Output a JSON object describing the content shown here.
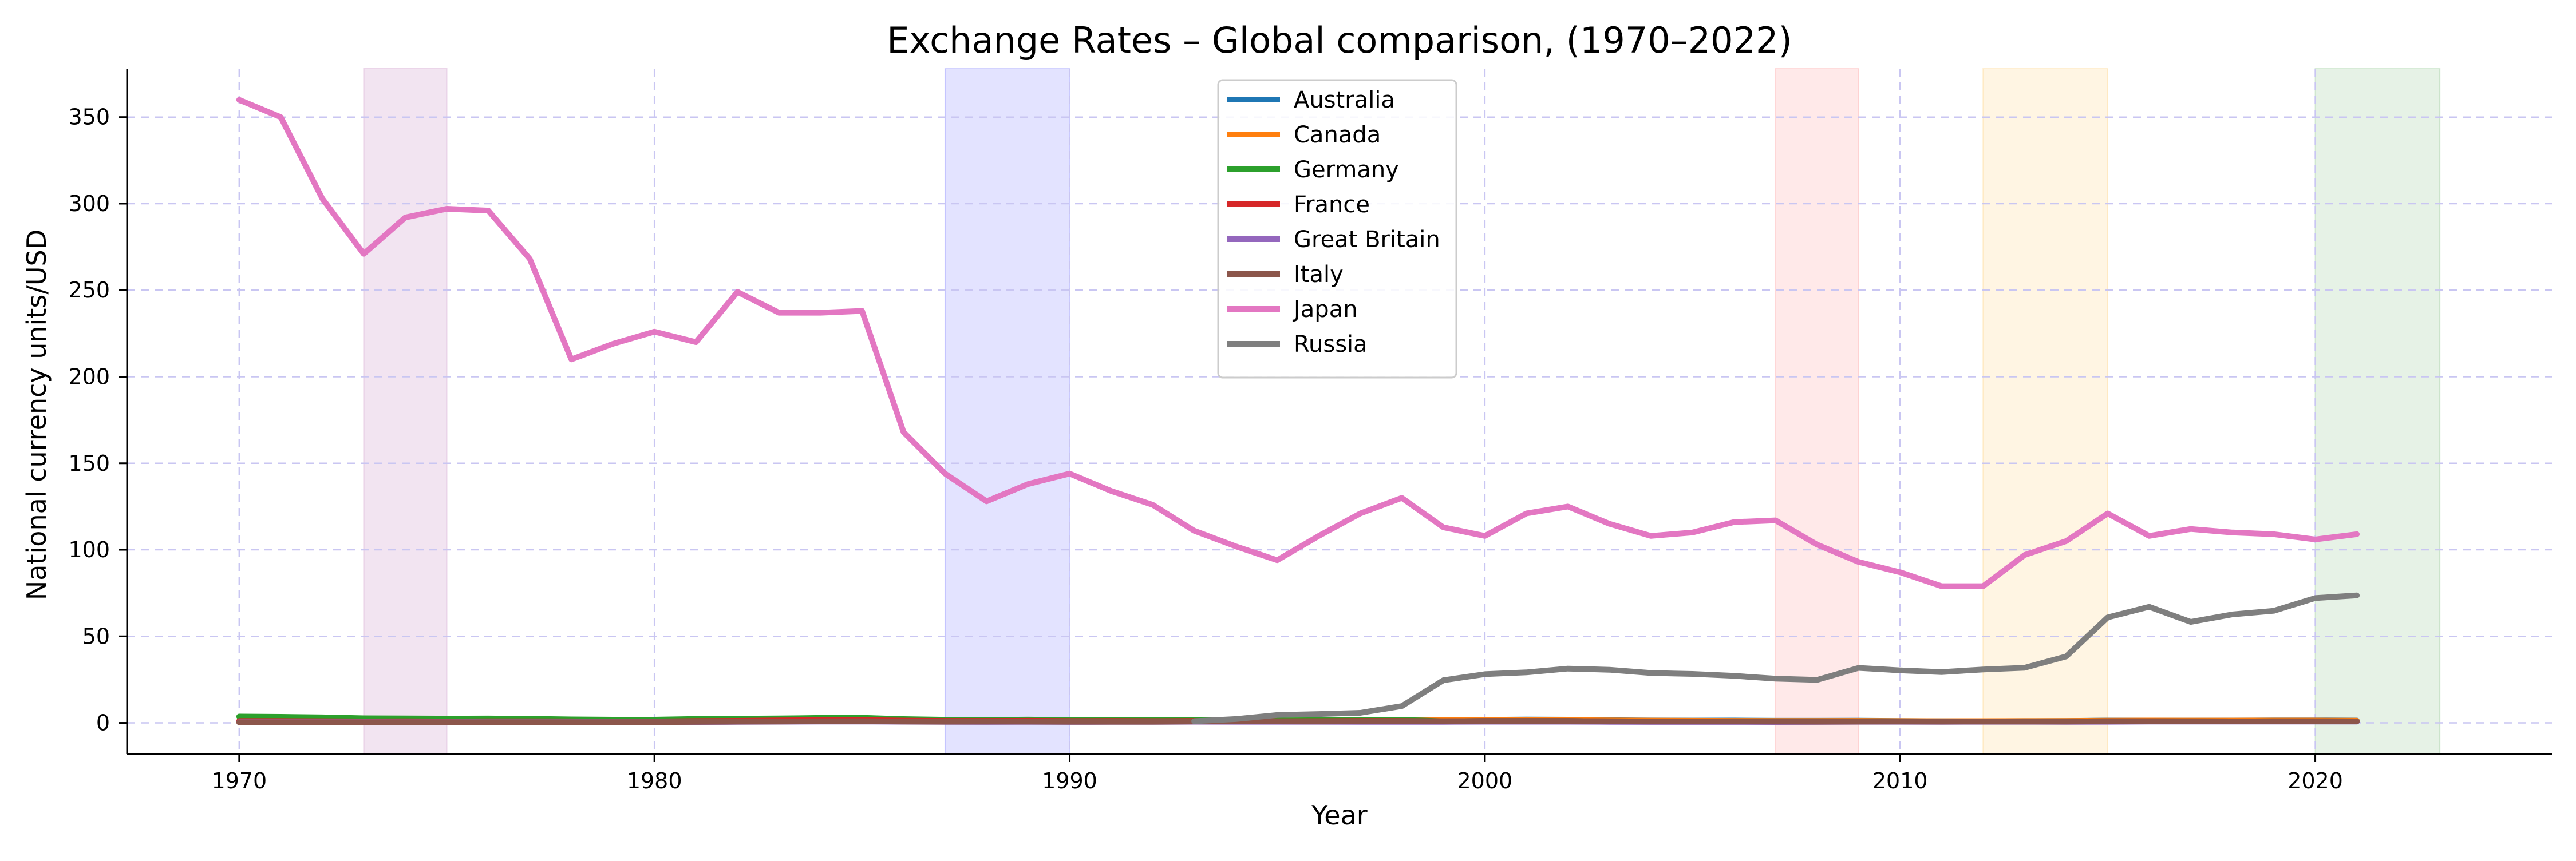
{
  "chart_data": {
    "type": "line",
    "title": "Exchange Rates – Global comparison, (1970–2022)",
    "xlabel": "Year",
    "ylabel": "National currency units/USD",
    "xlim": [
      1967.3,
      2025.7
    ],
    "ylim": [
      -18,
      378
    ],
    "xticks": [
      1970,
      1980,
      1990,
      2000,
      2010,
      2020
    ],
    "yticks": [
      0,
      50,
      100,
      150,
      200,
      250,
      300,
      350
    ],
    "grid": true,
    "legend_position": "top-center",
    "shaded_periods": [
      {
        "start": 1973,
        "end": 1975,
        "color": "#c586c0"
      },
      {
        "start": 1987,
        "end": 1990,
        "color": "#8080ff"
      },
      {
        "start": 2007,
        "end": 2009,
        "color": "#ff9b9b"
      },
      {
        "start": 2012,
        "end": 2015,
        "color": "#ffd27f"
      },
      {
        "start": 2020,
        "end": 2023,
        "color": "#8cc68c"
      }
    ],
    "series": [
      {
        "name": "Australia",
        "color": "#1f77b4",
        "start_year": 1970,
        "values": [
          0.89,
          0.88,
          0.84,
          0.7,
          0.69,
          0.76,
          0.82,
          0.9,
          0.87,
          0.89,
          0.88,
          0.87,
          0.98,
          1.11,
          1.14,
          1.43,
          1.5,
          1.43,
          1.28,
          1.26,
          1.28,
          1.28,
          1.36,
          1.47,
          1.37,
          1.35,
          1.28,
          1.35,
          1.59,
          1.55,
          1.72,
          1.93,
          1.84,
          1.54,
          1.36,
          1.31,
          1.33,
          1.19,
          1.19,
          1.28,
          1.09,
          0.97,
          0.97,
          1.04,
          1.11,
          1.33,
          1.35,
          1.3,
          1.34,
          1.44,
          1.45,
          1.33
        ]
      },
      {
        "name": "Canada",
        "color": "#ff7f0e",
        "start_year": 1970,
        "values": [
          1.04,
          1.01,
          0.99,
          1.0,
          0.98,
          1.02,
          0.99,
          1.06,
          1.14,
          1.17,
          1.17,
          1.2,
          1.23,
          1.23,
          1.3,
          1.37,
          1.39,
          1.33,
          1.23,
          1.18,
          1.17,
          1.15,
          1.21,
          1.29,
          1.37,
          1.37,
          1.36,
          1.38,
          1.48,
          1.49,
          1.49,
          1.55,
          1.57,
          1.4,
          1.3,
          1.21,
          1.13,
          1.07,
          1.07,
          1.14,
          1.03,
          0.99,
          1.0,
          1.03,
          1.1,
          1.28,
          1.33,
          1.3,
          1.3,
          1.33,
          1.34,
          1.25
        ]
      },
      {
        "name": "Germany",
        "color": "#2ca02c",
        "start_year": 1970,
        "values": [
          3.66,
          3.49,
          3.19,
          2.67,
          2.59,
          2.46,
          2.52,
          2.32,
          2.01,
          1.83,
          1.82,
          2.26,
          2.43,
          2.55,
          2.85,
          2.94,
          2.17,
          1.8,
          1.76,
          1.88,
          1.62,
          1.66,
          1.56,
          1.65,
          1.62,
          1.43,
          1.5,
          1.73,
          1.76,
          0.94,
          1.09,
          1.12,
          1.06,
          0.89,
          0.8,
          0.8,
          0.8,
          0.73,
          0.68,
          0.72,
          0.76,
          0.72,
          0.78,
          0.75,
          0.75,
          0.9,
          0.9,
          0.89,
          0.85,
          0.89,
          0.88,
          0.85
        ]
      },
      {
        "name": "France",
        "color": "#d62728",
        "start_year": 1970,
        "values": [
          1.05,
          1.05,
          0.96,
          0.84,
          0.91,
          0.82,
          0.91,
          0.94,
          0.87,
          0.82,
          0.81,
          1.03,
          1.18,
          1.39,
          1.6,
          1.65,
          1.31,
          1.15,
          1.15,
          1.22,
          1.04,
          1.06,
          1.0,
          1.08,
          1.08,
          0.95,
          0.98,
          1.11,
          1.12,
          0.94,
          1.09,
          1.12,
          1.06,
          0.89,
          0.8,
          0.8,
          0.8,
          0.73,
          0.68,
          0.72,
          0.76,
          0.72,
          0.78,
          0.75,
          0.75,
          0.9,
          0.9,
          0.89,
          0.85,
          0.89,
          0.88,
          0.85
        ]
      },
      {
        "name": "Great Britain",
        "color": "#9467bd",
        "start_year": 1970,
        "values": [
          0.42,
          0.41,
          0.4,
          0.41,
          0.43,
          0.45,
          0.55,
          0.57,
          0.52,
          0.47,
          0.43,
          0.5,
          0.57,
          0.66,
          0.75,
          0.78,
          0.68,
          0.61,
          0.56,
          0.61,
          0.56,
          0.57,
          0.57,
          0.67,
          0.65,
          0.63,
          0.64,
          0.61,
          0.6,
          0.62,
          0.66,
          0.69,
          0.67,
          0.61,
          0.55,
          0.55,
          0.54,
          0.5,
          0.54,
          0.64,
          0.65,
          0.62,
          0.63,
          0.64,
          0.61,
          0.65,
          0.74,
          0.78,
          0.75,
          0.78,
          0.78,
          0.73
        ]
      },
      {
        "name": "Italy",
        "color": "#8c564b",
        "start_year": 1970,
        "values": [
          0.32,
          0.32,
          0.3,
          0.3,
          0.34,
          0.34,
          0.43,
          0.46,
          0.44,
          0.43,
          0.44,
          0.58,
          0.7,
          0.78,
          0.9,
          0.99,
          0.75,
          0.67,
          0.71,
          0.71,
          0.64,
          0.64,
          0.65,
          0.82,
          0.84,
          0.84,
          0.8,
          0.88,
          0.9,
          0.94,
          1.09,
          1.12,
          1.06,
          0.89,
          0.8,
          0.8,
          0.8,
          0.73,
          0.68,
          0.72,
          0.76,
          0.72,
          0.78,
          0.75,
          0.75,
          0.9,
          0.9,
          0.89,
          0.85,
          0.89,
          0.88,
          0.85
        ]
      },
      {
        "name": "Japan",
        "color": "#e377c2",
        "start_year": 1970,
        "values": [
          360,
          350,
          303,
          271,
          292,
          297,
          296,
          268,
          210,
          219,
          226,
          220,
          249,
          237,
          237,
          238,
          168,
          144,
          128,
          138,
          144,
          134,
          126,
          111,
          102,
          94,
          108,
          121,
          130,
          113,
          108,
          121,
          125,
          115,
          108,
          110,
          116,
          117,
          103,
          93,
          87,
          79,
          79,
          97,
          105,
          121,
          108,
          112,
          110,
          109,
          106,
          109
        ]
      },
      {
        "name": "Russia",
        "color": "#7f7f7f",
        "start_year": 1993,
        "values": [
          0.99,
          2.19,
          4.56,
          5.12,
          5.79,
          9.71,
          24.62,
          28.13,
          29.17,
          31.35,
          30.69,
          28.81,
          28.28,
          27.19,
          25.58,
          24.85,
          31.74,
          30.37,
          29.38,
          30.84,
          31.84,
          38.38,
          60.94,
          67.06,
          58.34,
          62.67,
          64.74,
          72.1,
          73.65
        ]
      }
    ]
  }
}
